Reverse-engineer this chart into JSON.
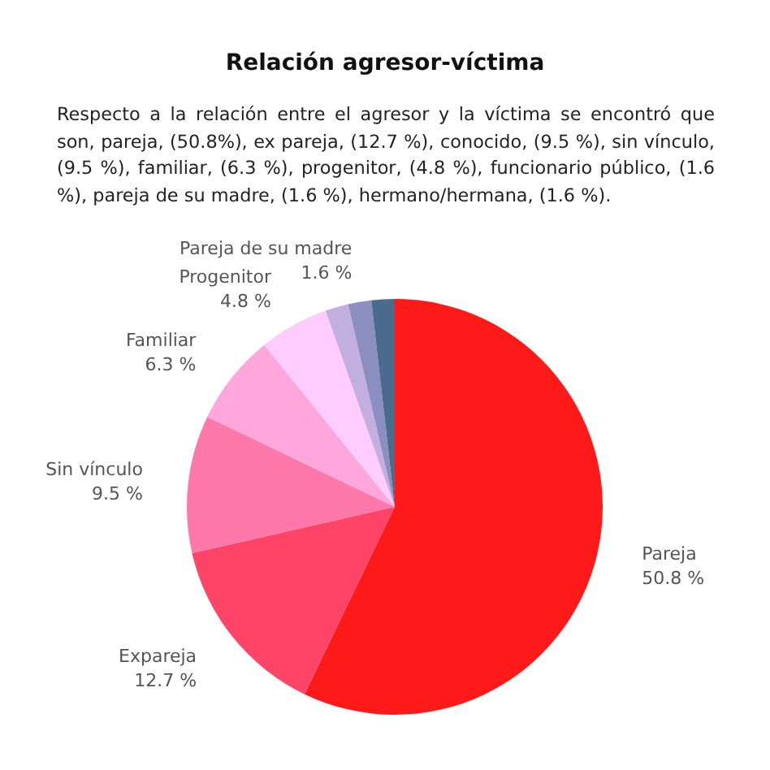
{
  "chart_data": {
    "type": "pie",
    "title": "Relación agresor-víctima",
    "subtitle": "Respecto a la relación entre el agresor y la víctima se encontró que son, pareja, (50.8%), ex pareja, (12.7 %), conocido, (9.5 %), sin vínculo, (9.5 %), familiar, (6.3 %), progenitor, (4.8 %), funcionario público, (1.6 %), pareja de su madre, (1.6 %), hermano/hermana, (1.6 %).",
    "categories": [
      "Pareja",
      "Expareja",
      "Sin vínculo",
      "Familiar",
      "Progenitor",
      null,
      "Pareja de su madre",
      null
    ],
    "values": [
      50.8,
      12.7,
      9.5,
      6.3,
      4.8,
      1.6,
      1.6,
      1.6
    ],
    "value_labels": [
      "50.8 %",
      "12.7 %",
      "9.5 %",
      "6.3 %",
      "4.8 %",
      null,
      "1.6 %",
      null
    ],
    "colors": [
      "#ff1a1a",
      "#ff4468",
      "#ff78aa",
      "#ffa6dc",
      "#ffccff",
      "#c3aee0",
      "#8b8fbf",
      "#4a6a8e"
    ]
  }
}
